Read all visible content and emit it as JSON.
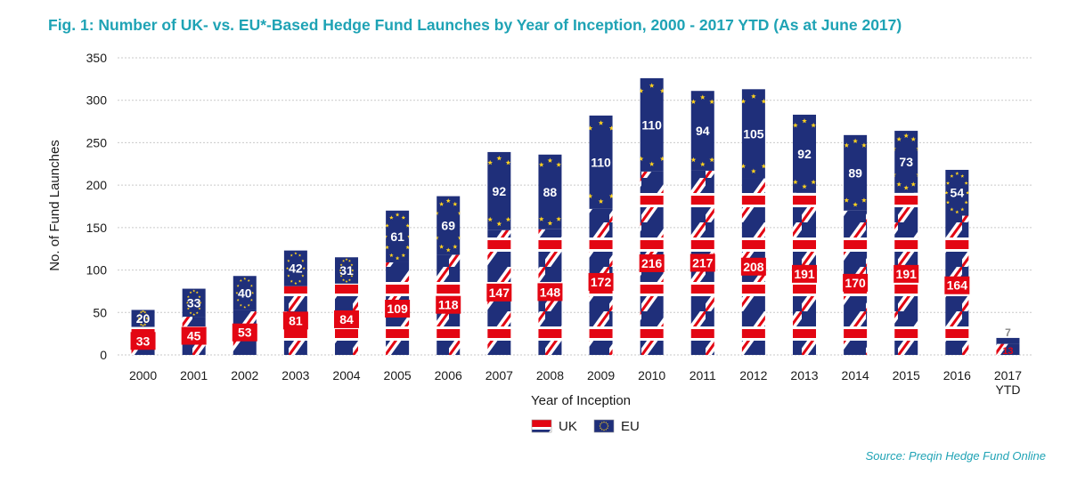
{
  "chart_data": {
    "type": "bar",
    "stacked": true,
    "title": "Fig. 1: Number of UK- vs. EU*-Based Hedge Fund Launches by Year of Inception, 2000 - 2017 YTD (As at June 2017)",
    "xlabel": "Year of Inception",
    "ylabel": "No. of Fund Launches",
    "ylim": [
      0,
      350
    ],
    "yticks": [
      0,
      50,
      100,
      150,
      200,
      250,
      300,
      350
    ],
    "grid": true,
    "legend_position": "bottom-center",
    "categories": [
      "2000",
      "2001",
      "2002",
      "2003",
      "2004",
      "2005",
      "2006",
      "2007",
      "2008",
      "2009",
      "2010",
      "2011",
      "2012",
      "2013",
      "2014",
      "2015",
      "2016",
      "2017 YTD"
    ],
    "series": [
      {
        "name": "UK",
        "values": [
          33,
          45,
          53,
          81,
          84,
          109,
          118,
          147,
          148,
          172,
          216,
          217,
          208,
          191,
          170,
          191,
          164,
          13
        ]
      },
      {
        "name": "EU",
        "values": [
          20,
          33,
          40,
          42,
          31,
          61,
          69,
          92,
          88,
          110,
          110,
          94,
          105,
          92,
          89,
          73,
          54,
          7
        ]
      }
    ],
    "colors": {
      "navy": "#1f2f7a",
      "red": "#e30613",
      "white": "#ffffff",
      "star": "#ffd21e"
    },
    "source": "Source: Preqin Hedge Fund Online"
  }
}
